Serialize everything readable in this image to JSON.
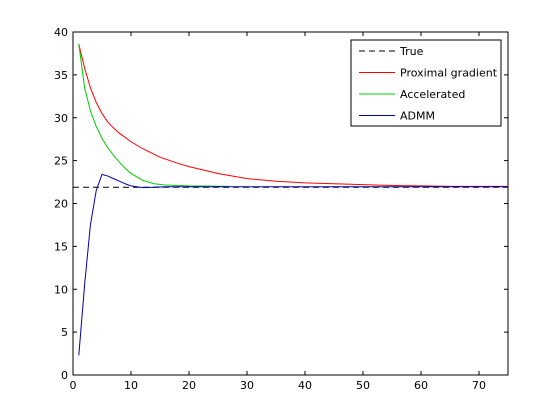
{
  "chart_data": {
    "type": "line",
    "xlim": [
      0,
      75
    ],
    "ylim": [
      0,
      40
    ],
    "xticks": [
      0,
      10,
      20,
      30,
      40,
      50,
      60,
      70
    ],
    "yticks": [
      0,
      5,
      10,
      15,
      20,
      25,
      30,
      35,
      40
    ],
    "grid": false,
    "legend_position": "top-right",
    "series": [
      {
        "name": "True",
        "color": "#000000",
        "dash": true,
        "x": [
          0,
          75
        ],
        "y": [
          21.9,
          21.9
        ]
      },
      {
        "name": "Proximal gradient",
        "color": "#ff0000",
        "dash": false,
        "x": [
          1,
          2,
          3,
          4,
          5,
          6,
          7,
          8,
          10,
          12,
          15,
          18,
          20,
          25,
          30,
          35,
          40,
          45,
          50,
          55,
          60,
          65,
          70,
          75
        ],
        "y": [
          38.6,
          35.8,
          33.5,
          31.8,
          30.5,
          29.5,
          28.8,
          28.2,
          27.2,
          26.4,
          25.4,
          24.7,
          24.3,
          23.5,
          22.9,
          22.6,
          22.4,
          22.3,
          22.2,
          22.1,
          22.05,
          22.0,
          22.0,
          22.0
        ]
      },
      {
        "name": "Accelerated",
        "color": "#00cc00",
        "dash": false,
        "x": [
          1,
          2,
          3,
          4,
          5,
          6,
          7,
          8,
          9,
          10,
          12,
          14,
          16,
          18,
          20,
          27
        ],
        "y": [
          38.6,
          33.5,
          30.8,
          29.0,
          27.6,
          26.5,
          25.6,
          24.8,
          24.1,
          23.5,
          22.7,
          22.3,
          22.15,
          22.1,
          22.05,
          22.0
        ]
      },
      {
        "name": "ADMM",
        "color": "#0000aa",
        "dash": false,
        "x": [
          1,
          2,
          3,
          4,
          5,
          6,
          7,
          8,
          9,
          10,
          12,
          14,
          16,
          20,
          30,
          40,
          50,
          60,
          70,
          75
        ],
        "y": [
          2.3,
          10.5,
          17.5,
          21.5,
          23.4,
          23.2,
          22.9,
          22.6,
          22.3,
          22.05,
          21.85,
          21.9,
          21.95,
          21.95,
          21.95,
          21.95,
          21.95,
          21.95,
          21.95,
          21.95
        ]
      }
    ]
  }
}
